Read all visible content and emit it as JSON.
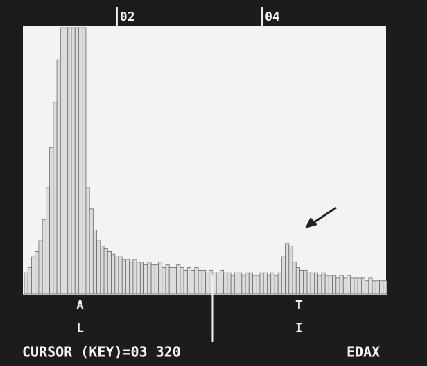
{
  "chart_data": {
    "type": "histogram",
    "xlim": [
      0.72,
      5.72
    ],
    "ylim": [
      0,
      100
    ],
    "xticks": [
      {
        "value": 2,
        "label": "02"
      },
      {
        "value": 4,
        "label": "04"
      }
    ],
    "bins": [
      0.72,
      0.77,
      0.82,
      0.87,
      0.92,
      0.97,
      1.02,
      1.07,
      1.12,
      1.17,
      1.22,
      1.27,
      1.32,
      1.37,
      1.42,
      1.47,
      1.52,
      1.57,
      1.62,
      1.67,
      1.72,
      1.77,
      1.82,
      1.87,
      1.92,
      1.97,
      2.02,
      2.07,
      2.12,
      2.17,
      2.22,
      2.27,
      2.32,
      2.37,
      2.42,
      2.47,
      2.52,
      2.57,
      2.62,
      2.67,
      2.72,
      2.77,
      2.82,
      2.87,
      2.92,
      2.97,
      3.02,
      3.07,
      3.12,
      3.17,
      3.22,
      3.27,
      3.32,
      3.37,
      3.42,
      3.47,
      3.52,
      3.57,
      3.62,
      3.67,
      3.72,
      3.77,
      3.82,
      3.87,
      3.92,
      3.97,
      4.02,
      4.07,
      4.12,
      4.17,
      4.22,
      4.27,
      4.32,
      4.37,
      4.42,
      4.47,
      4.52,
      4.57,
      4.62,
      4.67,
      4.72,
      4.77,
      4.82,
      4.87,
      4.92,
      4.97,
      5.02,
      5.07,
      5.12,
      5.17,
      5.22,
      5.27,
      5.32,
      5.37,
      5.42,
      5.47,
      5.52,
      5.57,
      5.62,
      5.67,
      5.72
    ],
    "values": [
      8,
      10,
      14,
      16,
      20,
      28,
      40,
      55,
      72,
      88,
      100,
      100,
      100,
      100,
      100,
      100,
      100,
      40,
      32,
      24,
      20,
      18,
      17,
      16,
      15,
      14,
      14,
      13,
      13,
      12,
      13,
      12,
      12,
      11,
      12,
      11,
      11,
      12,
      10,
      11,
      10,
      10,
      11,
      10,
      9,
      10,
      9,
      10,
      9,
      9,
      8,
      9,
      8,
      8,
      9,
      8,
      8,
      7,
      8,
      8,
      7,
      8,
      8,
      7,
      7,
      8,
      8,
      7,
      8,
      7,
      8,
      14,
      19,
      18,
      12,
      10,
      9,
      9,
      8,
      8,
      8,
      7,
      8,
      7,
      7,
      7,
      6,
      7,
      6,
      7,
      6,
      6,
      6,
      6,
      5,
      6,
      5,
      5,
      5,
      5
    ],
    "color": "#dcdcdc",
    "annotations": [
      {
        "value": 1.49,
        "lines": [
          "A",
          "L"
        ]
      },
      {
        "value": 4.51,
        "lines": [
          "T",
          "I"
        ]
      }
    ],
    "cursor": {
      "value": 3.32,
      "label": "CURSOR (KEY)=03 320"
    },
    "brand": "EDAX"
  }
}
